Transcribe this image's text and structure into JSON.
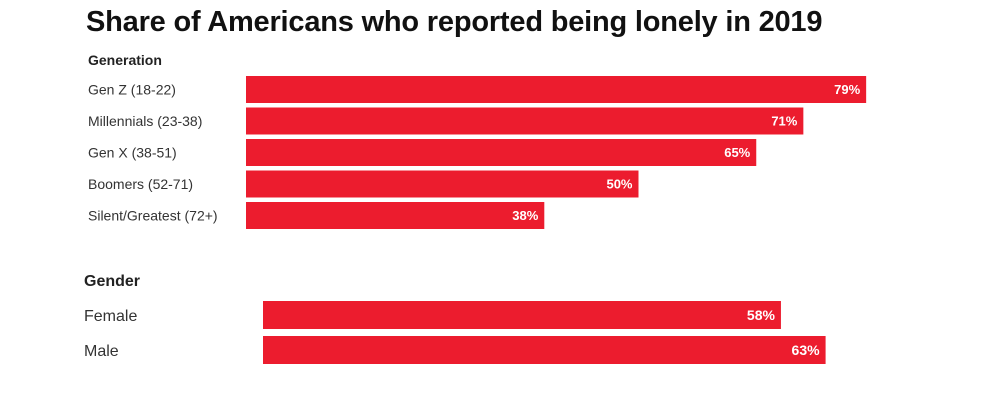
{
  "title": "Share of Americans who reported being lonely in 2019",
  "chart_data": [
    {
      "type": "bar",
      "orientation": "horizontal",
      "title": "Generation",
      "categories": [
        "Gen Z (18-22)",
        "Millennials (23-38)",
        "Gen X (38-51)",
        "Boomers (52-71)",
        "Silent/Greatest (72+)"
      ],
      "values": [
        79,
        71,
        65,
        50,
        38
      ],
      "value_labels": [
        "79%",
        "71%",
        "65%",
        "50%",
        "38%"
      ],
      "unit": "%",
      "xlim": [
        0,
        100
      ],
      "grid": false,
      "color": "#ec1c2e"
    },
    {
      "type": "bar",
      "orientation": "horizontal",
      "title": "Gender",
      "categories": [
        "Female",
        "Male"
      ],
      "values": [
        58,
        63
      ],
      "value_labels": [
        "58%",
        "63%"
      ],
      "unit": "%",
      "xlim": [
        0,
        100
      ],
      "grid": false,
      "color": "#ec1c2e"
    }
  ]
}
